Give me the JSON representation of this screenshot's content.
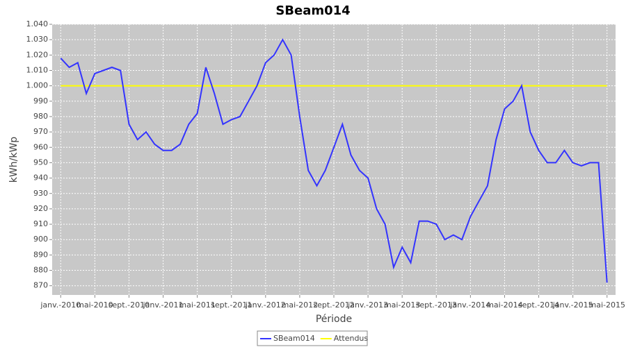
{
  "chart_data": {
    "type": "line",
    "title": "SBeam014",
    "x_label": "Période",
    "y_label": "kWh/kWp",
    "x": [
      "2010-01",
      "2010-02",
      "2010-03",
      "2010-04",
      "2010-05",
      "2010-06",
      "2010-07",
      "2010-08",
      "2010-09",
      "2010-10",
      "2010-11",
      "2010-12",
      "2011-01",
      "2011-02",
      "2011-03",
      "2011-04",
      "2011-05",
      "2011-06",
      "2011-07",
      "2011-08",
      "2011-09",
      "2011-10",
      "2011-11",
      "2011-12",
      "2012-01",
      "2012-02",
      "2012-03",
      "2012-04",
      "2012-05",
      "2012-06",
      "2012-07",
      "2012-08",
      "2012-09",
      "2012-10",
      "2012-11",
      "2012-12",
      "2013-01",
      "2013-02",
      "2013-03",
      "2013-04",
      "2013-05",
      "2013-06",
      "2013-07",
      "2013-08",
      "2013-09",
      "2013-10",
      "2013-11",
      "2013-12",
      "2014-01",
      "2014-02",
      "2014-03",
      "2014-04",
      "2014-05",
      "2014-06",
      "2014-07",
      "2014-08",
      "2014-09",
      "2014-10",
      "2014-11",
      "2014-12",
      "2015-01",
      "2015-02",
      "2015-03",
      "2015-04",
      "2015-05"
    ],
    "series": [
      {
        "name": "SBeam014",
        "color": "#3333ff",
        "values": [
          1018,
          1012,
          1015,
          995,
          1008,
          1010,
          1012,
          1010,
          975,
          965,
          970,
          962,
          958,
          958,
          962,
          975,
          982,
          1012,
          995,
          975,
          978,
          980,
          990,
          1000,
          1015,
          1020,
          1030,
          1020,
          980,
          945,
          935,
          945,
          960,
          975,
          955,
          945,
          940,
          920,
          910,
          882,
          895,
          885,
          912,
          912,
          910,
          900,
          903,
          900,
          915,
          925,
          935,
          965,
          985,
          990,
          1000,
          970,
          958,
          950,
          950,
          958,
          950,
          948,
          950,
          950,
          872
        ]
      },
      {
        "name": "Attendus",
        "color": "#ffff00",
        "values": [
          1000,
          1000,
          1000,
          1000,
          1000,
          1000,
          1000,
          1000,
          1000,
          1000,
          1000,
          1000,
          1000,
          1000,
          1000,
          1000,
          1000,
          1000,
          1000,
          1000,
          1000,
          1000,
          1000,
          1000,
          1000,
          1000,
          1000,
          1000,
          1000,
          1000,
          1000,
          1000,
          1000,
          1000,
          1000,
          1000,
          1000,
          1000,
          1000,
          1000,
          1000,
          1000,
          1000,
          1000,
          1000,
          1000,
          1000,
          1000,
          1000,
          1000,
          1000,
          1000,
          1000,
          1000,
          1000,
          1000,
          1000,
          1000,
          1000,
          1000,
          1000,
          1000,
          1000,
          1000,
          1000
        ]
      }
    ],
    "xlim": [
      "2009-12",
      "2015-06"
    ],
    "xticks": [
      {
        "value": "2010-01",
        "label": "janv.-2010"
      },
      {
        "value": "2010-05",
        "label": "mai-2010"
      },
      {
        "value": "2010-09",
        "label": "sept.-2010"
      },
      {
        "value": "2011-01",
        "label": "janv.-2011"
      },
      {
        "value": "2011-05",
        "label": "mai-2011"
      },
      {
        "value": "2011-09",
        "label": "sept.-2011"
      },
      {
        "value": "2012-01",
        "label": "janv.-2012"
      },
      {
        "value": "2012-05",
        "label": "mai-2012"
      },
      {
        "value": "2012-09",
        "label": "sept.-2012"
      },
      {
        "value": "2013-01",
        "label": "janv.-2013"
      },
      {
        "value": "2013-05",
        "label": "mai-2013"
      },
      {
        "value": "2013-09",
        "label": "sept.-2013"
      },
      {
        "value": "2014-01",
        "label": "janv.-2014"
      },
      {
        "value": "2014-05",
        "label": "mai-2014"
      },
      {
        "value": "2014-09",
        "label": "sept.-2014"
      },
      {
        "value": "2015-01",
        "label": "janv.-2015"
      },
      {
        "value": "2015-05",
        "label": "mai-2015"
      }
    ],
    "ylim": [
      864,
      1040
    ],
    "yticks": [
      {
        "value": 870,
        "label": "870"
      },
      {
        "value": 880,
        "label": "880"
      },
      {
        "value": 890,
        "label": "890"
      },
      {
        "value": 900,
        "label": "900"
      },
      {
        "value": 910,
        "label": "910"
      },
      {
        "value": 920,
        "label": "920"
      },
      {
        "value": 930,
        "label": "930"
      },
      {
        "value": 940,
        "label": "940"
      },
      {
        "value": 950,
        "label": "950"
      },
      {
        "value": 960,
        "label": "960"
      },
      {
        "value": 970,
        "label": "970"
      },
      {
        "value": 980,
        "label": "980"
      },
      {
        "value": 990,
        "label": "990"
      },
      {
        "value": 1000,
        "label": "1.000"
      },
      {
        "value": 1010,
        "label": "1.010"
      },
      {
        "value": 1020,
        "label": "1.020"
      },
      {
        "value": 1030,
        "label": "1.030"
      },
      {
        "value": 1040,
        "label": "1.040"
      }
    ],
    "grid": true
  }
}
